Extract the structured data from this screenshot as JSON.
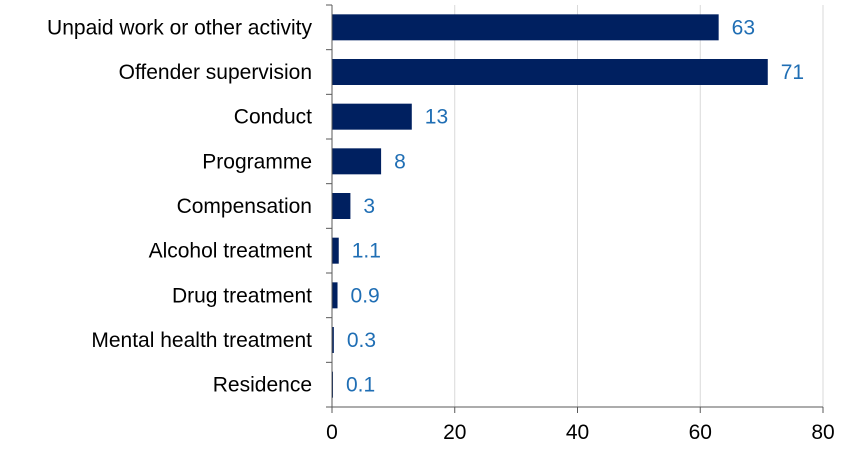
{
  "chart_data": {
    "type": "bar",
    "orientation": "horizontal",
    "categories": [
      "Unpaid work or other activity",
      "Offender supervision",
      "Conduct",
      "Programme",
      "Compensation",
      "Alcohol treatment",
      "Drug treatment",
      "Mental health treatment",
      "Residence"
    ],
    "values": [
      63,
      71,
      13,
      8,
      3,
      1.1,
      0.9,
      0.3,
      0.1
    ],
    "value_labels": [
      "63",
      "71",
      "13",
      "8",
      "3",
      "1.1",
      "0.9",
      "0.3",
      "0.1"
    ],
    "xlim": [
      0,
      80
    ],
    "xticks": [
      0,
      20,
      40,
      60,
      80
    ],
    "grid": "vertical",
    "legend": "none",
    "colors": {
      "bar": "#002060",
      "value_label": "#1f6eb4",
      "grid": "#d9d9d9",
      "axis": "#595959"
    }
  }
}
